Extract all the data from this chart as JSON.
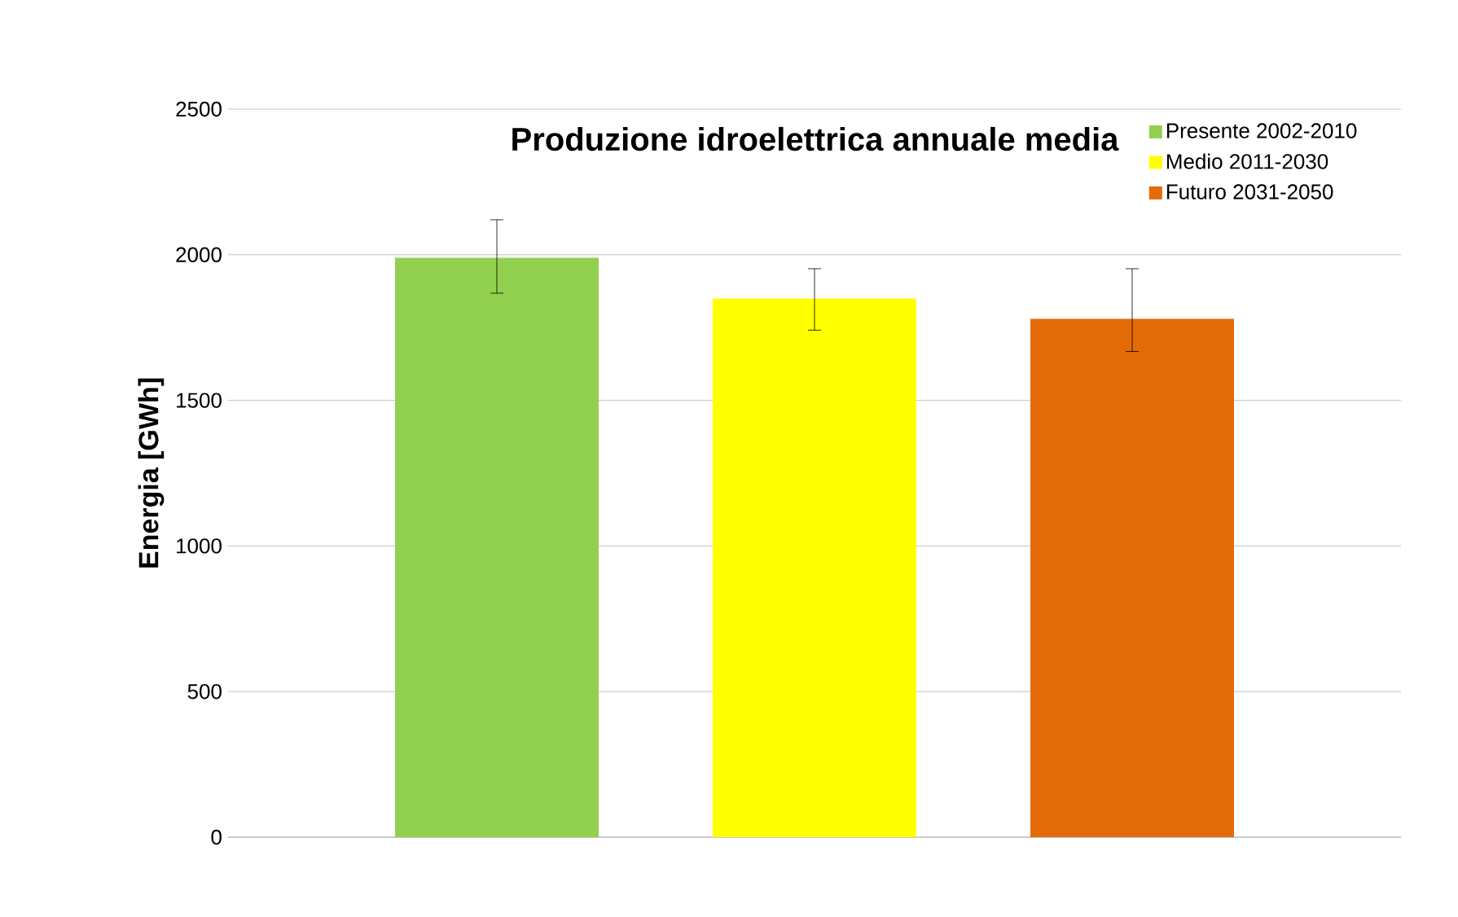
{
  "chart_data": {
    "type": "bar",
    "title": "Produzione idroelettrica annuale media",
    "ylabel": "Energia [GWh]",
    "categories": [
      null
    ],
    "series": [
      {
        "name": "Presente 2002-2010",
        "color": "#92d050",
        "values": [
          1990
        ],
        "errors": [
          [
            1868,
            2120
          ]
        ]
      },
      {
        "name": "Medio 2011-2030",
        "color": "#ffff00",
        "values": [
          1850
        ],
        "errors": [
          [
            1741,
            1952
          ]
        ]
      },
      {
        "name": "Futuro 2031-2050",
        "color": "#e36c09",
        "values": [
          1780
        ],
        "errors": [
          [
            1668,
            1952
          ]
        ]
      }
    ],
    "ylim": [
      0,
      2500
    ],
    "yticks": [
      0,
      500,
      1000,
      1500,
      2000,
      2500
    ],
    "grid": "y",
    "legend": "top right"
  }
}
